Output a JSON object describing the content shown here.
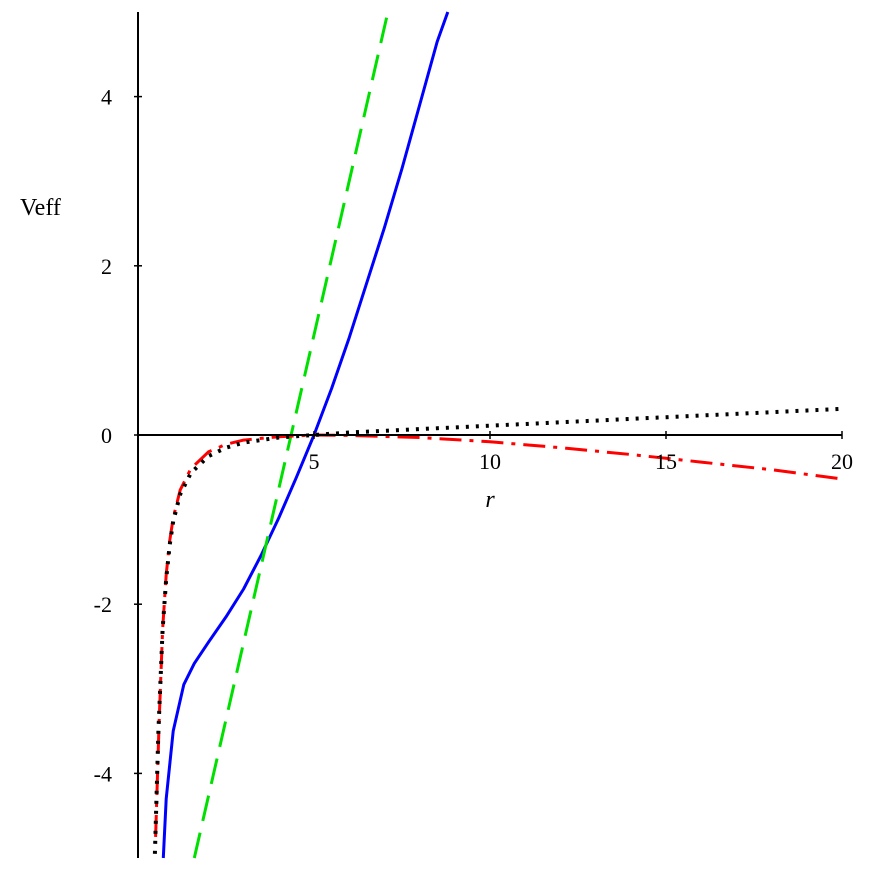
{
  "chart_data": {
    "type": "line",
    "title": "",
    "xlabel": "r",
    "ylabel": "Veff",
    "xlim": [
      0,
      20
    ],
    "ylim": [
      -5,
      5
    ],
    "x_ticks": [
      5,
      10,
      15,
      20
    ],
    "x_tick_labels": [
      "5",
      "10",
      "15",
      "20"
    ],
    "y_ticks": [
      -4,
      -2,
      0,
      2,
      4
    ],
    "y_tick_labels": [
      "-4",
      "-2",
      "0",
      "2",
      "4"
    ],
    "grid": false,
    "legend": "none",
    "series": [
      {
        "style": "solid",
        "color": "#0000ff",
        "x": [
          0.72,
          0.8,
          1.0,
          1.3,
          1.6,
          2.0,
          2.5,
          3.0,
          3.5,
          4.0,
          4.5,
          5.0,
          5.5,
          6.0,
          6.5,
          7.0,
          7.5,
          8.0,
          8.5,
          8.8
        ],
        "y": [
          -5.0,
          -4.3,
          -3.5,
          -2.95,
          -2.7,
          -2.45,
          -2.15,
          -1.82,
          -1.42,
          -0.98,
          -0.5,
          0.0,
          0.55,
          1.15,
          1.8,
          2.45,
          3.15,
          3.9,
          4.65,
          5.0
        ]
      },
      {
        "style": "dashed",
        "color": "#00e000",
        "x": [
          1.6,
          7.1
        ],
        "y": [
          -5.0,
          5.0
        ]
      },
      {
        "style": "dash-dot",
        "color": "#ff0000",
        "x": [
          0.5,
          0.6,
          0.7,
          0.8,
          0.9,
          1.0,
          1.2,
          1.5,
          2.0,
          2.5,
          3.0,
          4.0,
          5.0,
          6.0,
          8.0,
          10.0,
          12.0,
          14.0,
          16.0,
          18.0,
          20.0
        ],
        "y": [
          -4.75,
          -3.4,
          -2.3,
          -1.65,
          -1.25,
          -0.98,
          -0.65,
          -0.4,
          -0.2,
          -0.11,
          -0.06,
          -0.02,
          0.0,
          -0.005,
          -0.03,
          -0.08,
          -0.15,
          -0.23,
          -0.32,
          -0.41,
          -0.52
        ]
      },
      {
        "style": "dotted",
        "color": "#000000",
        "x": [
          0.48,
          0.58,
          0.7,
          0.8,
          0.9,
          1.0,
          1.2,
          1.5,
          2.0,
          2.5,
          3.0,
          4.0,
          5.0,
          6.0,
          8.0,
          10.0,
          12.0,
          14.0,
          16.0,
          18.0,
          20.0
        ],
        "y": [
          -4.95,
          -3.5,
          -2.3,
          -1.7,
          -1.3,
          -1.02,
          -0.7,
          -0.45,
          -0.25,
          -0.15,
          -0.09,
          -0.03,
          0.0,
          0.03,
          0.07,
          0.11,
          0.15,
          0.19,
          0.23,
          0.27,
          0.31
        ]
      }
    ]
  }
}
